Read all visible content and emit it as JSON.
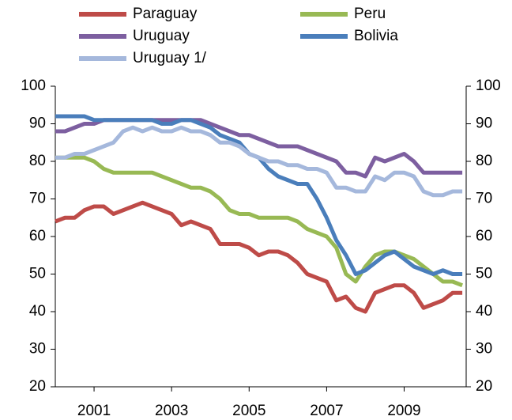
{
  "chart_data": {
    "type": "line",
    "x": [
      2000,
      2000.25,
      2000.5,
      2000.75,
      2001,
      2001.25,
      2001.5,
      2001.75,
      2002,
      2002.25,
      2002.5,
      2002.75,
      2003,
      2003.25,
      2003.5,
      2003.75,
      2004,
      2004.25,
      2004.5,
      2004.75,
      2005,
      2005.25,
      2005.5,
      2005.75,
      2006,
      2006.25,
      2006.5,
      2006.75,
      2007,
      2007.25,
      2007.5,
      2007.75,
      2008,
      2008.25,
      2008.5,
      2008.75,
      2009,
      2009.25,
      2009.5,
      2009.75,
      2010,
      2010.25,
      2010.5
    ],
    "series": [
      {
        "name": "Paraguay",
        "color": "#be4b48",
        "values": [
          64,
          65,
          65,
          67,
          68,
          68,
          66,
          67,
          68,
          69,
          68,
          67,
          66,
          63,
          64,
          63,
          62,
          58,
          58,
          58,
          57,
          55,
          56,
          56,
          55,
          53,
          50,
          49,
          48,
          43,
          44,
          41,
          40,
          45,
          46,
          47,
          47,
          45,
          41,
          42,
          43,
          45,
          45
        ]
      },
      {
        "name": "Peru",
        "color": "#98b954",
        "values": [
          81,
          81,
          81,
          81,
          80,
          78,
          77,
          77,
          77,
          77,
          77,
          76,
          75,
          74,
          73,
          73,
          72,
          70,
          67,
          66,
          66,
          65,
          65,
          65,
          65,
          64,
          62,
          61,
          60,
          57,
          50,
          48,
          52,
          55,
          56,
          56,
          55,
          54,
          52,
          50,
          48,
          48,
          47
        ]
      },
      {
        "name": "Uruguay",
        "color": "#7d5fa0",
        "values": [
          88,
          88,
          89,
          90,
          90,
          91,
          91,
          91,
          91,
          91,
          91,
          91,
          91,
          91,
          91,
          91,
          90,
          89,
          88,
          87,
          87,
          86,
          85,
          84,
          84,
          84,
          83,
          82,
          81,
          80,
          77,
          77,
          76,
          81,
          80,
          81,
          82,
          80,
          77,
          77,
          77,
          77,
          77
        ]
      },
      {
        "name": "Bolivia",
        "color": "#4a7ebb",
        "values": [
          92,
          92,
          92,
          92,
          91,
          91,
          91,
          91,
          91,
          91,
          91,
          90,
          90,
          91,
          91,
          90,
          89,
          87,
          86,
          85,
          82,
          81,
          78,
          76,
          75,
          74,
          74,
          70,
          65,
          59,
          55,
          50,
          51,
          53,
          55,
          56,
          54,
          52,
          51,
          50,
          51,
          50,
          50
        ]
      },
      {
        "name": "Uruguay 1/",
        "color": "#a5b8dc",
        "values": [
          81,
          81,
          82,
          82,
          83,
          84,
          85,
          88,
          89,
          88,
          89,
          88,
          88,
          89,
          88,
          88,
          87,
          85,
          85,
          84,
          82,
          81,
          80,
          80,
          79,
          79,
          78,
          78,
          77,
          73,
          73,
          72,
          72,
          76,
          75,
          77,
          77,
          76,
          72,
          71,
          71,
          72,
          72
        ]
      }
    ],
    "xlim": [
      2000,
      2010.6
    ],
    "xticks": [
      2001,
      2003,
      2005,
      2007,
      2009
    ],
    "ylim": [
      20,
      100
    ],
    "yticks": [
      20,
      30,
      40,
      50,
      60,
      70,
      80,
      90,
      100
    ]
  }
}
